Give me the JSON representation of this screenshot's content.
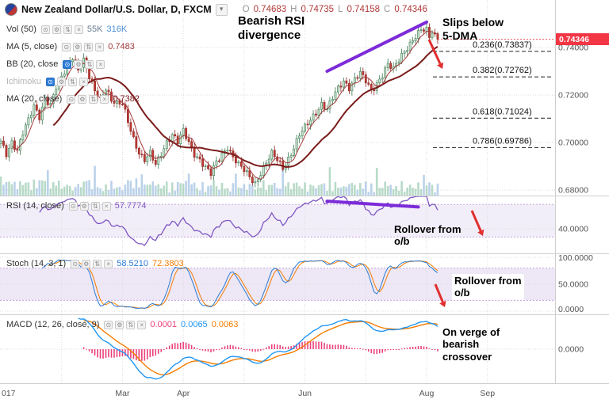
{
  "icons": {
    "dropdown": "▾",
    "visibility": "⊙",
    "settings": "⚙",
    "reorder": "⇅",
    "close": "×"
  },
  "header": {
    "title": "New Zealand Dollar/U.S. Dollar, D, FXCM",
    "ohlc": {
      "o_label": "O",
      "o": "0.74683",
      "h_label": "H",
      "h": "0.74735",
      "l_label": "L",
      "l": "0.74158",
      "c_label": "C",
      "c": "0.74346"
    }
  },
  "studies": {
    "price": [
      {
        "id": "vol",
        "label": "Vol (50)",
        "eye_active": false,
        "dimmed": false,
        "values": [
          {
            "text": "55K",
            "color": "#6b7c93"
          },
          {
            "text": "316K",
            "color": "#4a90d9"
          }
        ]
      },
      {
        "id": "ma5",
        "label": "MA (5, close)",
        "eye_active": false,
        "dimmed": false,
        "values": [
          {
            "text": "0.7483",
            "color": "#a33c3c"
          }
        ]
      },
      {
        "id": "bb",
        "label": "BB (20, close",
        "eye_active": true,
        "dimmed": false,
        "values": []
      },
      {
        "id": "ichimoku",
        "label": "Ichimoku",
        "eye_active": true,
        "dimmed": true,
        "values": []
      },
      {
        "id": "ma20",
        "label": "MA (20, close)",
        "eye_active": false,
        "dimmed": false,
        "values": [
          {
            "text": "0.7382",
            "color": "#7b1b1b"
          }
        ]
      }
    ],
    "rsi": {
      "id": "rsi",
      "label": "RSI (14, close)",
      "eye_active": false,
      "dimmed": false,
      "values": [
        {
          "text": "57.7774",
          "color": "#7e57c2"
        }
      ]
    },
    "stoch": {
      "id": "stoch",
      "label": "Stoch (14, 3, 1)",
      "eye_active": false,
      "dimmed": false,
      "values": [
        {
          "text": "58.5210",
          "color": "#2b7bd4"
        },
        {
          "text": "72.3803",
          "color": "#f57c00"
        }
      ]
    },
    "macd": {
      "id": "macd",
      "label": "MACD (12, 26, close, 9)",
      "eye_active": false,
      "dimmed": false,
      "values": [
        {
          "text": "0.0001",
          "color": "#ec407a"
        },
        {
          "text": "0.0065",
          "color": "#2196f3"
        },
        {
          "text": "0.0063",
          "color": "#f57c00"
        }
      ]
    }
  },
  "annotations": [
    {
      "id": "bearish-rsi-divergence",
      "text": "Bearish RSI\ndivergence"
    },
    {
      "id": "slips-below-5dma",
      "text": "Slips below\n5-DMA"
    },
    {
      "id": "rsi-rollover",
      "text": "Rollover from\no/b"
    },
    {
      "id": "stoch-rollover",
      "text": "Rollover from\no/b"
    },
    {
      "id": "macd-crossover",
      "text": "On verge of\nbearish\ncrossover"
    }
  ],
  "drawings": {
    "trendlines": [
      {
        "panel": "price",
        "from_bar": 118,
        "from_val": 0.73,
        "to_bar": 154,
        "to_val": 0.7507,
        "color": "#7c2bd9"
      },
      {
        "panel": "rsi",
        "from_bar": 118,
        "from_val": 74,
        "to_bar": 151,
        "to_val": 67,
        "color": "#7c2bd9"
      }
    ],
    "arrows": [
      {
        "from": [
          541,
          50
        ],
        "to": [
          558,
          87
        ]
      },
      {
        "from": [
          595,
          266
        ],
        "to": [
          609,
          298
        ]
      },
      {
        "from": [
          549,
          359
        ],
        "to": [
          561,
          388
        ]
      }
    ],
    "arrow_color": "#e02f2f"
  },
  "colors": {
    "up": "#3d7a52",
    "up_fill": "#cfe6d4",
    "down": "#8e2a26",
    "down_fill": "#c23a34",
    "ma5": "#a33c3c",
    "ma20": "#7b1b1b",
    "rsi": "#7e57c2",
    "stoch_k": "#2b7bd4",
    "stoch_d": "#f57c00",
    "macd": "#2196f3",
    "signal": "#f57c00",
    "hist": "#ec407a",
    "badge": "#f23645",
    "volume_up": "rgba(137,194,163,0.6)",
    "volume_down": "rgba(151,186,222,0.65)",
    "band": "rgba(126,87,194,0.10)",
    "band_stoch": "rgba(126,87,194,0.14)",
    "band_edge": "#c5a8dd",
    "grid": "#dcdcdc",
    "sep": "#cfcfcf",
    "axis_text": "#555"
  },
  "chart_data": {
    "type": "candlestick",
    "title": "New Zealand Dollar/U.S. Dollar, D, FXCM",
    "x_unit": "daily bars, Jan 2017 - Aug 2017",
    "bars_total": 159,
    "price_range": [
      0.68,
      0.76
    ],
    "last": {
      "o": 0.74683,
      "h": 0.74735,
      "l": 0.74158,
      "c": 0.74346
    },
    "close_keyframes": [
      [
        0,
        0.7
      ],
      [
        2,
        0.695
      ],
      [
        4,
        0.7005
      ],
      [
        6,
        0.697
      ],
      [
        8,
        0.704
      ],
      [
        10,
        0.709
      ],
      [
        12,
        0.715
      ],
      [
        14,
        0.711
      ],
      [
        16,
        0.719
      ],
      [
        18,
        0.716
      ],
      [
        20,
        0.723
      ],
      [
        22,
        0.727
      ],
      [
        24,
        0.732
      ],
      [
        26,
        0.7365
      ],
      [
        28,
        0.731
      ],
      [
        30,
        0.7345
      ],
      [
        32,
        0.727
      ],
      [
        34,
        0.7215
      ],
      [
        36,
        0.7185
      ],
      [
        38,
        0.7235
      ],
      [
        40,
        0.718
      ],
      [
        42,
        0.716
      ],
      [
        44,
        0.716
      ],
      [
        46,
        0.709
      ],
      [
        48,
        0.702
      ],
      [
        50,
        0.696
      ],
      [
        52,
        0.6925
      ],
      [
        54,
        0.695
      ],
      [
        56,
        0.6905
      ],
      [
        58,
        0.6955
      ],
      [
        60,
        0.7005
      ],
      [
        62,
        0.7035
      ],
      [
        64,
        0.7
      ],
      [
        66,
        0.7045
      ],
      [
        68,
        0.7
      ],
      [
        70,
        0.6955
      ],
      [
        72,
        0.693
      ],
      [
        74,
        0.6895
      ],
      [
        76,
        0.6865
      ],
      [
        78,
        0.6915
      ],
      [
        80,
        0.695
      ],
      [
        82,
        0.6985
      ],
      [
        84,
        0.694
      ],
      [
        86,
        0.6905
      ],
      [
        88,
        0.688
      ],
      [
        90,
        0.6855
      ],
      [
        92,
        0.683
      ],
      [
        94,
        0.6875
      ],
      [
        96,
        0.6915
      ],
      [
        98,
        0.695
      ],
      [
        100,
        0.6925
      ],
      [
        102,
        0.6895
      ],
      [
        104,
        0.6935
      ],
      [
        106,
        0.698
      ],
      [
        108,
        0.703
      ],
      [
        110,
        0.706
      ],
      [
        112,
        0.7095
      ],
      [
        114,
        0.713
      ],
      [
        116,
        0.7165
      ],
      [
        118,
        0.714
      ],
      [
        120,
        0.7185
      ],
      [
        122,
        0.7225
      ],
      [
        124,
        0.726
      ],
      [
        126,
        0.7235
      ],
      [
        128,
        0.727
      ],
      [
        130,
        0.729
      ],
      [
        132,
        0.7255
      ],
      [
        134,
        0.7215
      ],
      [
        136,
        0.725
      ],
      [
        138,
        0.729
      ],
      [
        140,
        0.733
      ],
      [
        142,
        0.7305
      ],
      [
        144,
        0.7345
      ],
      [
        146,
        0.7385
      ],
      [
        148,
        0.742
      ],
      [
        150,
        0.745
      ],
      [
        152,
        0.7472
      ],
      [
        154,
        0.7468
      ],
      [
        155,
        0.744
      ],
      [
        156,
        0.7466
      ],
      [
        157,
        0.745
      ],
      [
        158,
        0.74346
      ]
    ],
    "indicators": {
      "ma5_last": 0.7483,
      "ma20_last": 0.7382,
      "rsi_last": 57.7774,
      "stoch_k_last": 58.521,
      "stoch_d_last": 72.3803,
      "macd_hist_last": 0.0001,
      "macd_last": 0.0065,
      "macd_signal_last": 0.0063
    },
    "fib_levels": [
      {
        "label": "0.236(0.73837)",
        "price": 0.73837
      },
      {
        "label": "0.382(0.72762)",
        "price": 0.72762
      },
      {
        "label": "0.618(0.71024)",
        "price": 0.71024
      },
      {
        "label": "0.786(0.69786)",
        "price": 0.69786
      }
    ],
    "price_axis": {
      "ticks": [
        {
          "label": "0.74000",
          "price": 0.74
        },
        {
          "label": "0.72000",
          "price": 0.72
        },
        {
          "label": "0.70000",
          "price": 0.7
        },
        {
          "label": "0.68000",
          "price": 0.68
        }
      ],
      "last": {
        "label": "0.74346",
        "price": 0.74346
      }
    },
    "panels": {
      "rsi": {
        "range": [
          10,
          80
        ],
        "band": [
          30,
          70
        ],
        "ticks": [
          {
            "label": "40.0000",
            "value": 40
          }
        ]
      },
      "stoch": {
        "range": [
          0,
          100
        ],
        "band": [
          20,
          80
        ],
        "ticks": [
          {
            "label": "100.0000",
            "value": 100
          },
          {
            "label": "50.0000",
            "value": 50
          },
          {
            "label": "0.0000",
            "value": 0
          }
        ]
      },
      "macd": {
        "ticks": [
          {
            "label": "0.0000",
            "value": 0
          }
        ]
      }
    },
    "time_axis": [
      {
        "label": "017",
        "bar": 0,
        "anchor": "start"
      },
      {
        "label": "Mar",
        "bar": 44
      },
      {
        "label": "Apr",
        "bar": 66
      },
      {
        "label": "Jun",
        "bar": 110
      },
      {
        "label": "Aug",
        "bar": 154
      },
      {
        "label": "Sep",
        "bar": 176
      }
    ],
    "grid_month_bars": [
      22,
      44,
      66,
      88,
      110,
      132,
      154,
      176
    ]
  }
}
